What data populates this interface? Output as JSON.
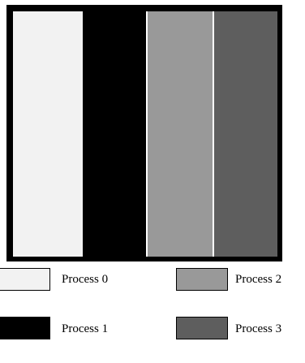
{
  "processes": [
    {
      "label": "Process 0",
      "color": "#f2f2f2"
    },
    {
      "label": "Process 1",
      "color": "#000000"
    },
    {
      "label": "Process 2",
      "color": "#999999"
    },
    {
      "label": "Process 3",
      "color": "#5e5e5e"
    }
  ],
  "domain": {
    "border_color": "#000000",
    "gap_color": "#ffffff"
  }
}
